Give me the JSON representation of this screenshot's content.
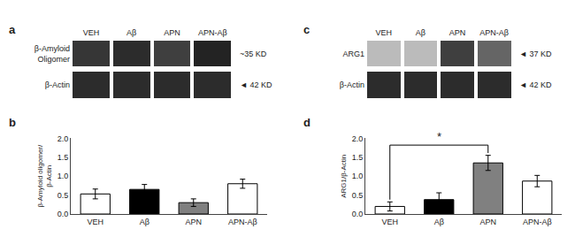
{
  "chart_data": [
    {
      "type": "heatmap",
      "title": "a",
      "categories": [
        "VEH",
        "Aβ",
        "APN",
        "APN-Aβ"
      ],
      "series": [
        {
          "name": "β-Amyloid\nOligomer",
          "values": [
            0.85,
            0.9,
            0.8,
            0.95
          ]
        },
        {
          "name": "β-Actin",
          "values": [
            0.9,
            0.9,
            0.9,
            0.9
          ]
        }
      ],
      "annotations": [
        "~35 KD",
        "◄ 42 KD"
      ]
    },
    {
      "type": "heatmap",
      "title": "c",
      "categories": [
        "VEH",
        "Aβ",
        "APN",
        "APN-Aβ"
      ],
      "series": [
        {
          "name": "ARG1",
          "values": [
            0.15,
            0.15,
            0.8,
            0.6
          ]
        },
        {
          "name": "β-Actin",
          "values": [
            0.9,
            0.9,
            0.9,
            0.9
          ]
        }
      ],
      "annotations": [
        "◄ 37 KD",
        "◄ 42 KD"
      ]
    },
    {
      "type": "bar",
      "title": "b",
      "categories": [
        "VEH",
        "Aβ",
        "APN",
        "APN-Aβ"
      ],
      "values": [
        0.53,
        0.65,
        0.3,
        0.8
      ],
      "errors": [
        0.13,
        0.13,
        0.1,
        0.12
      ],
      "colors": [
        "white",
        "black",
        "#808080",
        "checker"
      ],
      "ylabel": "β-Amyloid oligomer/\nβ-Actin",
      "ylim": [
        0,
        2.0
      ],
      "yticks": [
        {
          "value": 0,
          "label": "0.0"
        },
        0.5,
        {
          "value": 1,
          "label": "1.0"
        },
        1.5,
        {
          "value": 2,
          "label": "2.0"
        }
      ],
      "grid": false
    },
    {
      "type": "bar",
      "title": "d",
      "categories": [
        "VEH",
        "Aβ",
        "APN",
        "APN-Aβ"
      ],
      "values": [
        0.2,
        0.38,
        1.35,
        0.87
      ],
      "errors": [
        0.12,
        0.18,
        0.2,
        0.15
      ],
      "colors": [
        "white",
        "black",
        "#808080",
        "checker"
      ],
      "ylabel": "ARG1/β-Actin",
      "ylim": [
        0,
        2.0
      ],
      "yticks": [
        {
          "value": 0,
          "label": "0.0"
        },
        0.5,
        {
          "value": 1,
          "label": "1.0"
        },
        1.5,
        {
          "value": 2,
          "label": "2.0"
        }
      ],
      "grid": false,
      "annotations": [
        {
          "text": "*",
          "from": "VEH",
          "to": "APN",
          "y": 1.82,
          "ends": [
            0.38,
            1.61
          ]
        }
      ]
    }
  ]
}
